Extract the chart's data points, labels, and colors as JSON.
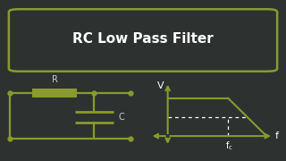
{
  "bg_color": "#2d3230",
  "title_text": "RC Low Pass Filter",
  "title_edge_color": "#8a9a2e",
  "circuit_color": "#8a9a2e",
  "text_color": "#ffffff",
  "label_color": "#cccccc",
  "resistor_label": "R",
  "capacitor_label": "C",
  "v_label": "V",
  "f_label": "f",
  "dot_line_color": "#ffffff",
  "title_fontsize": 11,
  "label_fontsize": 7
}
